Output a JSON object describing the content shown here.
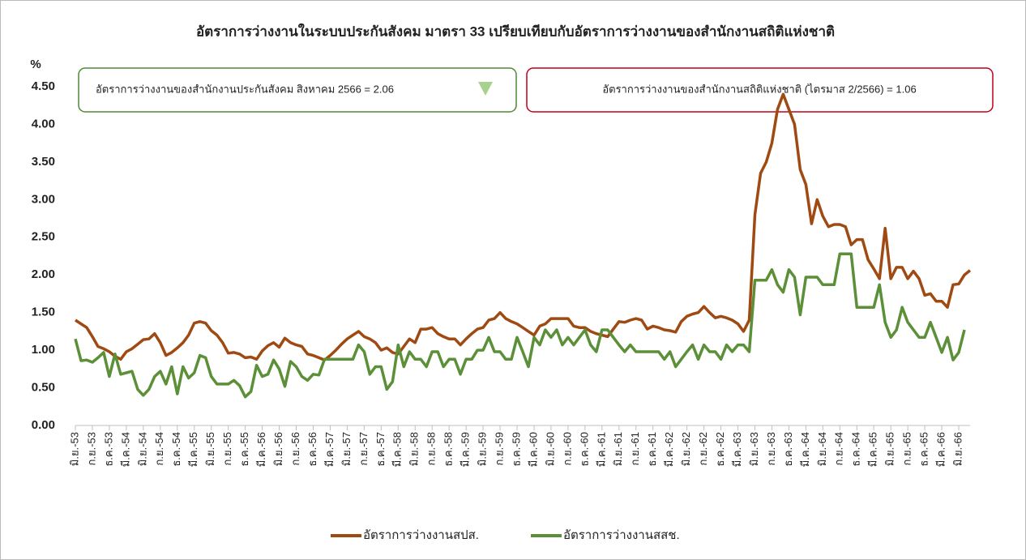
{
  "chart_data": {
    "type": "line",
    "title": "อัตราการว่างงานในระบบประกันสังคม มาตรา 33 เปรียบเทียบกับอัตราการว่างงานของสำนักงานสถิติแห่งชาติ",
    "y_label": "%",
    "annotations": [
      "อัตราการว่างงานของสำนักงานประกันสังคม  สิงหาคม 2566  =  2.06",
      "อัตราการว่างงานของสำนักงานสถิติแห่งชาติ  (ไตรมาส  2/2566)  =  1.06"
    ],
    "ylim": [
      0,
      4.5
    ],
    "yticks": [
      {
        "value": 0,
        "label": "0.00"
      },
      {
        "value": 0.5,
        "label": "0.50"
      },
      {
        "value": 1,
        "label": "1.00"
      },
      {
        "value": 1.5,
        "label": "1.50"
      },
      {
        "value": 2,
        "label": "2.00"
      },
      {
        "value": 2.5,
        "label": "2.50"
      },
      {
        "value": 3,
        "label": "3.00"
      },
      {
        "value": 3.5,
        "label": "3.50"
      },
      {
        "value": 4,
        "label": "4.00"
      },
      {
        "value": 4.5,
        "label": "4.50"
      }
    ],
    "categories": [
      "มิ.ย.-53",
      null,
      null,
      "ก.ย.-53",
      null,
      null,
      "ธ.ค.-53",
      null,
      null,
      "มี.ค.-54",
      null,
      null,
      "มิ.ย.-54",
      null,
      null,
      "ก.ย.-54",
      null,
      null,
      "ธ.ค.-54",
      null,
      null,
      "มี.ค.-55",
      null,
      null,
      "มิ.ย.-55",
      null,
      null,
      "ก.ย.-55",
      null,
      null,
      "ธ.ค.-55",
      null,
      null,
      "มี.ค.-56",
      null,
      null,
      "มิ.ย.-56",
      null,
      null,
      "ก.ย.-56",
      null,
      null,
      "ธ.ค.-56",
      null,
      null,
      "มี.ค.-57",
      null,
      null,
      "มิ.ย.-57",
      null,
      null,
      "ก.ย.-57",
      null,
      null,
      "ธ.ค.-57",
      null,
      null,
      "มี.ค.-58",
      null,
      null,
      "มิ.ย.-58",
      null,
      null,
      "ก.ย.-58",
      null,
      null,
      "ธ.ค.-58",
      null,
      null,
      "มี.ค.-59",
      null,
      null,
      "มิ.ย.-59",
      null,
      null,
      "ก.ย.-59",
      null,
      null,
      "ธ.ค.-59",
      null,
      null,
      "มี.ค.-60",
      null,
      null,
      "มิ.ย.-60",
      null,
      null,
      "ก.ย.-60",
      null,
      null,
      "ธ.ค.-60",
      null,
      null,
      "มี.ค.-61",
      null,
      null,
      "มิ.ย.-61",
      null,
      null,
      "ก.ย.-61",
      null,
      null,
      "ธ.ค.-61",
      null,
      null,
      "มี.ค.-62",
      null,
      null,
      "มิ.ย.-62",
      null,
      null,
      "ก.ย.-62",
      null,
      null,
      "ธ.ค.-62",
      null,
      null,
      "มี.ค.-63",
      null,
      null,
      "มิ.ย.-63",
      null,
      null,
      "ก.ย.-63",
      null,
      null,
      "ธ.ค.-63",
      null,
      null,
      "มี.ค.-64",
      null,
      null,
      "มิ.ย.-64",
      null,
      null,
      "ก.ย.-64",
      null,
      null,
      "ธ.ค.-64",
      null,
      null,
      "มี.ค.-65",
      null,
      null,
      "มิ.ย.-65",
      null,
      null,
      "ก.ย.-65",
      null,
      null,
      "ธ.ค.-65",
      null,
      null,
      "มี.ค.-66",
      null,
      null,
      "มิ.ย.-66",
      null,
      null
    ],
    "series": [
      {
        "name": "อัตราการว่างงานสปส.",
        "color": "#9e4a12",
        "values": [
          1.4,
          1.35,
          1.3,
          1.18,
          1.05,
          1.02,
          0.98,
          0.92,
          0.88,
          0.98,
          1.02,
          1.08,
          1.14,
          1.15,
          1.22,
          1.1,
          0.93,
          0.97,
          1.03,
          1.1,
          1.2,
          1.36,
          1.38,
          1.36,
          1.26,
          1.2,
          1.1,
          0.96,
          0.97,
          0.95,
          0.9,
          0.91,
          0.88,
          0.99,
          1.06,
          1.1,
          1.04,
          1.16,
          1.1,
          1.07,
          1.05,
          0.95,
          0.93,
          0.9,
          0.87,
          0.93,
          1.0,
          1.08,
          1.15,
          1.2,
          1.25,
          1.18,
          1.15,
          1.1,
          1.0,
          1.03,
          0.97,
          0.95,
          1.05,
          1.15,
          1.1,
          1.28,
          1.28,
          1.3,
          1.22,
          1.18,
          1.15,
          1.15,
          1.07,
          1.15,
          1.22,
          1.28,
          1.3,
          1.4,
          1.42,
          1.5,
          1.42,
          1.38,
          1.35,
          1.3,
          1.25,
          1.2,
          1.32,
          1.35,
          1.42,
          1.42,
          1.42,
          1.42,
          1.32,
          1.3,
          1.3,
          1.25,
          1.22,
          1.2,
          1.18,
          1.28,
          1.38,
          1.37,
          1.4,
          1.42,
          1.4,
          1.28,
          1.32,
          1.3,
          1.27,
          1.26,
          1.24,
          1.38,
          1.45,
          1.48,
          1.5,
          1.58,
          1.5,
          1.43,
          1.45,
          1.43,
          1.4,
          1.35,
          1.25,
          1.4,
          2.8,
          3.35,
          3.5,
          3.75,
          4.2,
          4.4,
          4.2,
          4.0,
          3.4,
          3.2,
          2.68,
          3.0,
          2.78,
          2.64,
          2.67,
          2.67,
          2.64,
          2.4,
          2.47,
          2.47,
          2.2,
          2.08,
          1.95,
          2.62,
          1.95,
          2.1,
          2.1,
          1.95,
          2.05,
          1.95,
          1.73,
          1.75,
          1.65,
          1.65,
          1.57,
          1.87,
          1.88,
          2.0,
          2.06
        ]
      },
      {
        "name": "อัตราการว่างงานสสช.",
        "color": "#5b8f38",
        "values": [
          1.15,
          0.86,
          0.87,
          0.84,
          0.9,
          0.97,
          0.65,
          0.95,
          0.68,
          0.7,
          0.72,
          0.48,
          0.4,
          0.48,
          0.65,
          0.72,
          0.55,
          0.78,
          0.42,
          0.78,
          0.63,
          0.7,
          0.93,
          0.9,
          0.65,
          0.55,
          0.55,
          0.55,
          0.6,
          0.53,
          0.38,
          0.45,
          0.8,
          0.65,
          0.68,
          0.87,
          0.75,
          0.52,
          0.85,
          0.78,
          0.65,
          0.6,
          0.68,
          0.67,
          0.88,
          0.88,
          0.88,
          0.88,
          0.88,
          0.88,
          1.07,
          0.98,
          0.68,
          0.78,
          0.78,
          0.48,
          0.58,
          1.07,
          0.78,
          0.98,
          0.88,
          0.88,
          0.78,
          0.98,
          0.98,
          0.78,
          0.88,
          0.88,
          0.68,
          0.88,
          0.88,
          1.0,
          1.0,
          1.17,
          0.98,
          0.98,
          0.88,
          0.88,
          1.17,
          0.98,
          0.78,
          1.17,
          1.07,
          1.27,
          1.17,
          1.27,
          1.07,
          1.17,
          1.07,
          1.17,
          1.27,
          1.07,
          0.98,
          1.27,
          1.27,
          1.17,
          1.07,
          0.98,
          1.07,
          0.98,
          0.98,
          0.98,
          0.98,
          0.98,
          0.88,
          0.98,
          0.78,
          0.88,
          0.98,
          1.07,
          0.88,
          1.07,
          0.98,
          0.98,
          0.88,
          1.07,
          0.98,
          1.07,
          1.07,
          0.98,
          1.93,
          1.93,
          1.93,
          2.07,
          1.87,
          1.77,
          2.07,
          1.97,
          1.47,
          1.97,
          1.97,
          1.97,
          1.87,
          1.87,
          1.87,
          2.28,
          2.28,
          2.28,
          1.57,
          1.57,
          1.57,
          1.57,
          1.87,
          1.37,
          1.17,
          1.27,
          1.57,
          1.37,
          1.27,
          1.17,
          1.17,
          1.37,
          1.17,
          0.97,
          1.17,
          0.87,
          0.97,
          1.27,
          null
        ]
      }
    ]
  }
}
